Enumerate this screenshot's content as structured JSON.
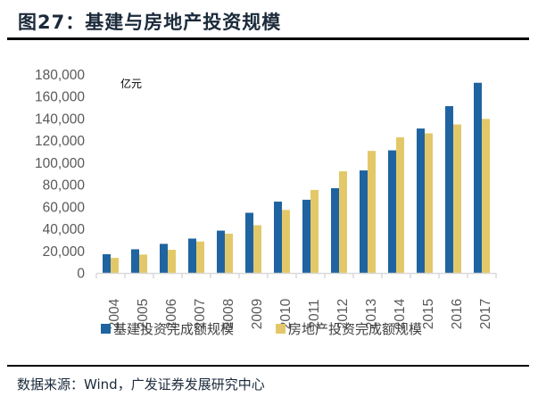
{
  "header": {
    "title": "图27：基建与房地产投资规模"
  },
  "footer": {
    "source": "数据来源：Wind，广发证券发展研究中心"
  },
  "colors": {
    "series1": "#1F64A0",
    "series2": "#E3C86A",
    "axis": "#D9D9D9"
  },
  "chart_data": {
    "type": "bar",
    "title": "基建与房地产投资规模",
    "unit_label": "亿元",
    "xlabel": "",
    "ylabel": "",
    "ylim": [
      0,
      180000
    ],
    "yticks": [
      0,
      20000,
      40000,
      60000,
      80000,
      100000,
      120000,
      140000,
      160000,
      180000
    ],
    "ytick_labels": [
      "0",
      "20,000",
      "40,000",
      "60,000",
      "80,000",
      "100,000",
      "120,000",
      "140,000",
      "160,000",
      "180,000"
    ],
    "grid": false,
    "legend_position": "bottom",
    "categories": [
      "2004",
      "2005",
      "2006",
      "2007",
      "2008",
      "2009",
      "2010",
      "2011",
      "2012",
      "2013",
      "2014",
      "2015",
      "2016",
      "2017"
    ],
    "series": [
      {
        "name": "基建投资完成额规模",
        "values": [
          17000,
          21500,
          26400,
          31200,
          38400,
          54600,
          64700,
          66400,
          76900,
          93000,
          111200,
          131000,
          151300,
          172500
        ]
      },
      {
        "name": "房地产投资完成额规模",
        "values": [
          13700,
          16700,
          21000,
          28500,
          35700,
          43300,
          57200,
          75300,
          92200,
          110700,
          123000,
          126600,
          134700,
          139700
        ]
      }
    ]
  }
}
